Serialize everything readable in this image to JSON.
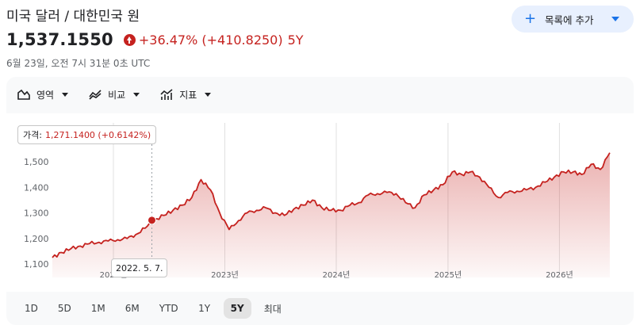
{
  "header": {
    "title": "미국 달러 / 대한민국 원",
    "watchlist_button": "목록에 추가",
    "price": "1,537.1550",
    "change": "+36.47% (+410.8250)",
    "period": "5Y",
    "timestamp": "6월 23일, 오전 7시 31분 0초 UTC"
  },
  "toolbar": {
    "area": "영역",
    "compare": "비교",
    "indicators": "지표"
  },
  "tooltip": {
    "label": "가격:",
    "value": "1,271.1400 (+0.6142%)",
    "date": "2022. 5. 7."
  },
  "ranges": [
    "1D",
    "5D",
    "1M",
    "6M",
    "YTD",
    "1Y",
    "5Y",
    "최대"
  ],
  "active_range": "5Y",
  "colors": {
    "line": "#c5221f",
    "accent": "#1a73e8"
  },
  "chart_data": {
    "type": "area",
    "y_ticks": [
      "1,100",
      "1,200",
      "1,300",
      "1,400",
      "1,500"
    ],
    "ylim": [
      1100,
      1500
    ],
    "x_ticks": [
      {
        "date": "2022-01-01",
        "label": "2022년"
      },
      {
        "date": "2023-01-01",
        "label": "2023년"
      },
      {
        "date": "2024-01-01",
        "label": "2024년"
      },
      {
        "date": "2025-01-01",
        "label": "2025년"
      },
      {
        "date": "2026-01-01",
        "label": "2026년"
      }
    ],
    "grid": true,
    "series": [
      {
        "x": [
          "2021-06",
          "2021-07",
          "2021-08",
          "2021-09",
          "2021-10",
          "2021-11",
          "2021-12",
          "2022-01",
          "2022-02",
          "2022-03",
          "2022-04",
          "2022-05",
          "2022-06",
          "2022-07",
          "2022-08",
          "2022-09",
          "2022-10",
          "2022-11",
          "2022-12",
          "2023-01",
          "2023-02",
          "2023-03",
          "2023-04",
          "2023-05",
          "2023-06",
          "2023-07",
          "2023-08",
          "2023-09",
          "2023-10",
          "2023-11",
          "2023-12",
          "2024-01",
          "2024-02",
          "2024-03",
          "2024-04",
          "2024-05",
          "2024-06",
          "2024-07",
          "2024-08",
          "2024-09",
          "2024-10",
          "2024-11",
          "2024-12",
          "2025-01",
          "2025-02",
          "2025-03",
          "2025-04",
          "2025-05",
          "2025-06",
          "2025-07",
          "2025-08",
          "2025-09",
          "2025-10",
          "2025-11",
          "2025-12",
          "2026-01",
          "2026-02",
          "2026-03",
          "2026-04",
          "2026-05",
          "2026-06"
        ],
        "y": [
          1125,
          1145,
          1160,
          1170,
          1180,
          1185,
          1190,
          1195,
          1200,
          1215,
          1240,
          1271,
          1290,
          1310,
          1330,
          1360,
          1430,
          1390,
          1300,
          1235,
          1270,
          1300,
          1310,
          1320,
          1300,
          1290,
          1315,
          1330,
          1350,
          1320,
          1310,
          1310,
          1330,
          1340,
          1370,
          1375,
          1380,
          1375,
          1340,
          1320,
          1370,
          1390,
          1410,
          1460,
          1450,
          1460,
          1440,
          1400,
          1360,
          1380,
          1385,
          1390,
          1400,
          1420,
          1440,
          1460,
          1460,
          1450,
          1490,
          1470,
          1535
        ]
      }
    ]
  }
}
